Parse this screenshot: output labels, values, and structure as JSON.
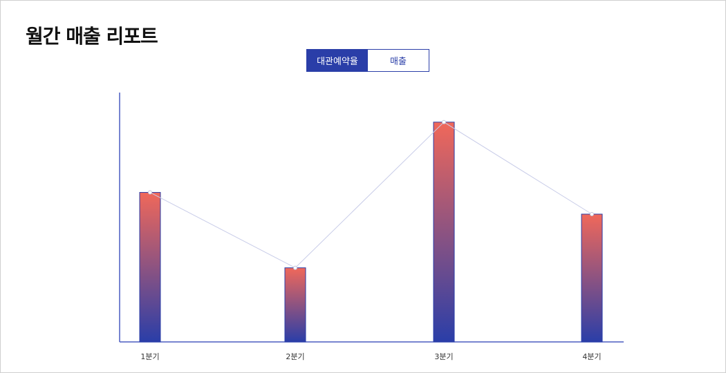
{
  "page": {
    "title": "월간 매출 리포트"
  },
  "tabs": [
    {
      "label": "대관예약율",
      "active": true
    },
    {
      "label": "매출",
      "active": false
    }
  ],
  "colors": {
    "accent": "#2a3ea8",
    "bar_top": "#f0685a",
    "bar_bottom": "#2a3ea8",
    "axis": "#4a5cc0",
    "line": "#c8cce8"
  },
  "chart_data": {
    "type": "bar",
    "categories": [
      "1분기",
      "2분기",
      "3분기",
      "4분기"
    ],
    "values": [
      58.5,
      29,
      86,
      50
    ],
    "ylim": [
      0,
      100
    ],
    "grid": false,
    "overlay_line": true
  }
}
